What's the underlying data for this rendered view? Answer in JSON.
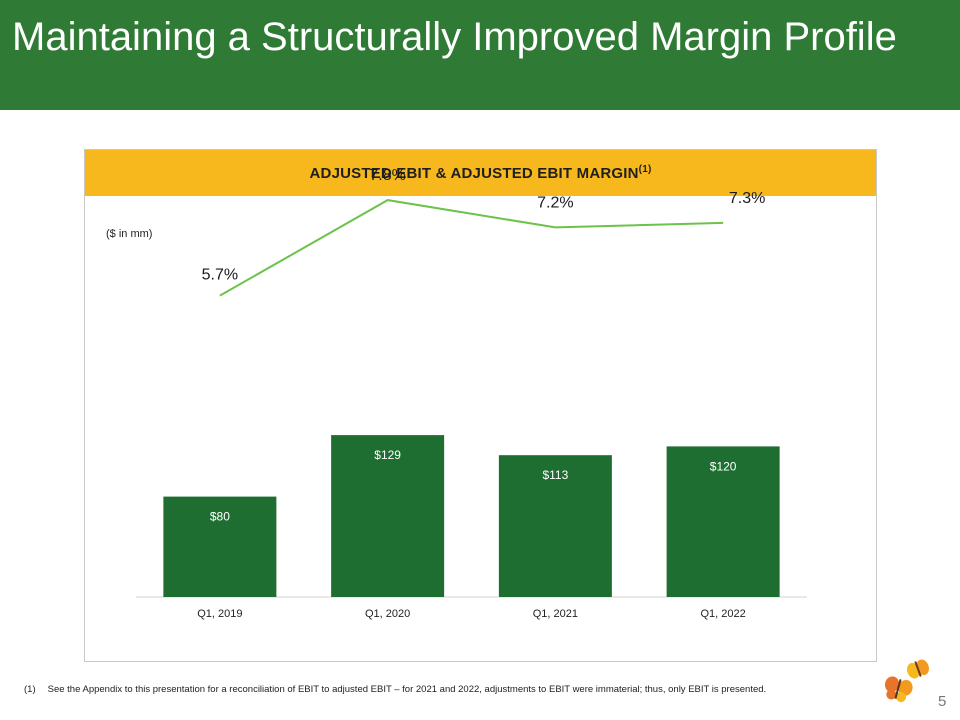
{
  "slide": {
    "title": "Maintaining a Structurally Improved Margin Profile",
    "page_number": "5",
    "footnote_marker": "(1)",
    "footnote_text": "See the Appendix to this presentation for a reconciliation of EBIT to adjusted EBIT – for 2021 and 2022, adjustments to EBIT were immaterial; thus, only EBIT is presented."
  },
  "chart_header": {
    "title": "ADJUSTED EBIT & ADJUSTED EBIT MARGIN",
    "superscript": "(1)"
  },
  "chart_data": {
    "type": "bar",
    "title": "ADJUSTED EBIT & ADJUSTED EBIT MARGIN(1)",
    "units_label": "($ in mm)",
    "categories": [
      "Q1, 2019",
      "Q1, 2020",
      "Q1, 2021",
      "Q1, 2022"
    ],
    "series": [
      {
        "type": "bar",
        "values": [
          80,
          129,
          113,
          120
        ],
        "labels": [
          "$80",
          "$129",
          "$113",
          "$120"
        ]
      },
      {
        "type": "line",
        "values": [
          5.7,
          7.8,
          7.2,
          7.3
        ],
        "labels": [
          "5.7%",
          "7.8%",
          "7.2%",
          "7.3%"
        ]
      }
    ],
    "ylim_bar": [
      0,
      200
    ],
    "ylim_line": [
      0,
      10
    ],
    "grid": false,
    "legend": "none",
    "colors": {
      "bar": "#1f6e31",
      "line": "#6cc24a",
      "header": "#f6b81c",
      "title_bar": "#2f7a34"
    }
  }
}
